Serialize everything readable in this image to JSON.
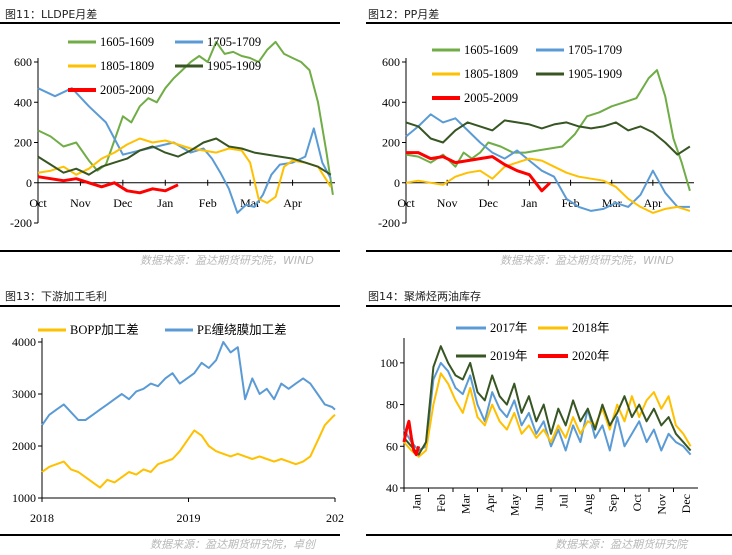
{
  "panels": {
    "p11": {
      "title": "图11：LLDPE月差",
      "source": "数据来源：盈达期货研究院，WIND"
    },
    "p12": {
      "title": "图12：PP月差",
      "source": "数据来源：盈达期货研究院，WIND"
    },
    "p13": {
      "title": "图13：下游加工毛利",
      "source": "数据来源：盈达期货研究院，卓创"
    },
    "p14": {
      "title": "图14：聚烯烃两油库存",
      "source": "数据来源：盈达期货研究院"
    }
  },
  "chart_data": [
    {
      "id": "p11",
      "type": "line",
      "title": "图11：LLDPE月差",
      "x_ticks": [
        "Oct",
        "Nov",
        "Dec",
        "Jan",
        "Feb",
        "Mar",
        "Apr"
      ],
      "y_ticks": [
        600,
        400,
        200,
        0,
        -200
      ],
      "ylim": [
        -200,
        600
      ],
      "xlim": [
        0,
        7
      ],
      "legend_cols": [
        [
          "1605-1609",
          "1805-1809",
          "2005-2009"
        ],
        [
          "1705-1709",
          "1905-1909"
        ]
      ],
      "series": [
        {
          "name": "1605-1609",
          "color": "#70ad47",
          "x": [
            0,
            0.3,
            0.6,
            0.9,
            1.2,
            1.4,
            1.6,
            1.8,
            2.0,
            2.2,
            2.4,
            2.6,
            2.8,
            3.0,
            3.2,
            3.4,
            3.6,
            3.8,
            4.0,
            4.2,
            4.4,
            4.6,
            4.8,
            5.0,
            5.2,
            5.4,
            5.6,
            5.8,
            6.0,
            6.2,
            6.4,
            6.6,
            6.8,
            6.95
          ],
          "y": [
            260,
            230,
            180,
            200,
            110,
            60,
            90,
            210,
            330,
            300,
            380,
            420,
            400,
            470,
            520,
            560,
            600,
            630,
            600,
            700,
            640,
            650,
            630,
            620,
            600,
            660,
            700,
            640,
            620,
            600,
            560,
            400,
            150,
            -60
          ]
        },
        {
          "name": "1705-1709",
          "color": "#5b9bd5",
          "x": [
            0,
            0.4,
            0.8,
            1.2,
            1.6,
            2.0,
            2.4,
            2.8,
            3.2,
            3.6,
            3.9,
            4.1,
            4.3,
            4.5,
            4.7,
            4.9,
            5.1,
            5.3,
            5.5,
            5.7,
            6.0,
            6.3,
            6.5,
            6.7,
            6.9
          ],
          "y": [
            470,
            430,
            470,
            380,
            300,
            140,
            160,
            180,
            200,
            150,
            170,
            120,
            50,
            -30,
            -150,
            -110,
            -120,
            -60,
            40,
            90,
            100,
            130,
            270,
            100,
            20
          ]
        },
        {
          "name": "1805-1809",
          "color": "#ffc000",
          "x": [
            0,
            0.3,
            0.6,
            0.9,
            1.2,
            1.5,
            1.8,
            2.1,
            2.4,
            2.7,
            3.0,
            3.3,
            3.6,
            3.9,
            4.2,
            4.5,
            4.8,
            5.0,
            5.2,
            5.4,
            5.6,
            5.8,
            6.0,
            6.3,
            6.6,
            6.9
          ],
          "y": [
            50,
            60,
            80,
            40,
            70,
            120,
            150,
            190,
            220,
            200,
            210,
            190,
            170,
            160,
            150,
            170,
            160,
            100,
            -80,
            -100,
            -70,
            80,
            110,
            100,
            80,
            -20
          ]
        },
        {
          "name": "1905-1909",
          "color": "#375623",
          "x": [
            0,
            0.3,
            0.6,
            0.9,
            1.2,
            1.5,
            1.8,
            2.1,
            2.4,
            2.7,
            3.0,
            3.3,
            3.6,
            3.9,
            4.2,
            4.5,
            4.8,
            5.1,
            5.4,
            5.7,
            6.0,
            6.3,
            6.6,
            6.9
          ],
          "y": [
            130,
            90,
            50,
            70,
            40,
            80,
            100,
            120,
            160,
            180,
            150,
            130,
            160,
            200,
            220,
            180,
            170,
            150,
            140,
            130,
            120,
            100,
            80,
            40
          ]
        },
        {
          "name": "2005-2009",
          "color": "#ff0000",
          "x": [
            0,
            0.3,
            0.6,
            0.9,
            1.2,
            1.5,
            1.8,
            2.1,
            2.4,
            2.7,
            3.0,
            3.3
          ],
          "y": [
            30,
            20,
            10,
            20,
            0,
            -20,
            0,
            -40,
            -50,
            -30,
            -40,
            -10
          ]
        }
      ]
    },
    {
      "id": "p12",
      "type": "line",
      "title": "图12：PP月差",
      "x_ticks": [
        "Oct",
        "Nov",
        "Dec",
        "Jan",
        "Feb",
        "Mar",
        "Apr"
      ],
      "y_ticks": [
        600,
        400,
        200,
        0,
        -200
      ],
      "ylim": [
        -200,
        600
      ],
      "xlim": [
        0,
        7
      ],
      "legend_cols": [
        [
          "1605-1609",
          "1805-1809",
          "2005-2009"
        ],
        [
          "1705-1709",
          "1905-1909"
        ]
      ],
      "series": [
        {
          "name": "1605-1609",
          "color": "#70ad47",
          "x": [
            0,
            0.3,
            0.6,
            0.9,
            1.2,
            1.4,
            1.6,
            1.8,
            2.0,
            2.3,
            2.6,
            2.9,
            3.2,
            3.5,
            3.8,
            4.1,
            4.4,
            4.7,
            5.0,
            5.3,
            5.6,
            5.9,
            6.1,
            6.3,
            6.5,
            6.7,
            6.9
          ],
          "y": [
            140,
            130,
            100,
            140,
            80,
            150,
            120,
            150,
            200,
            180,
            150,
            150,
            160,
            170,
            180,
            240,
            330,
            350,
            380,
            400,
            420,
            520,
            560,
            430,
            220,
            100,
            -40
          ]
        },
        {
          "name": "1705-1709",
          "color": "#5b9bd5",
          "x": [
            0,
            0.3,
            0.6,
            0.9,
            1.2,
            1.5,
            1.8,
            2.1,
            2.4,
            2.7,
            3.0,
            3.3,
            3.6,
            3.9,
            4.2,
            4.5,
            4.8,
            5.1,
            5.4,
            5.7,
            6.0,
            6.3,
            6.6,
            6.9
          ],
          "y": [
            230,
            280,
            340,
            300,
            320,
            260,
            200,
            150,
            120,
            160,
            110,
            60,
            30,
            -80,
            -120,
            -140,
            -130,
            -100,
            -120,
            -60,
            60,
            -50,
            -120,
            -120
          ]
        },
        {
          "name": "1805-1809",
          "color": "#ffc000",
          "x": [
            0,
            0.3,
            0.6,
            0.9,
            1.2,
            1.5,
            1.8,
            2.1,
            2.4,
            2.7,
            3.0,
            3.3,
            3.6,
            3.9,
            4.2,
            4.5,
            4.8,
            5.1,
            5.4,
            5.7,
            6.0,
            6.3,
            6.6,
            6.9
          ],
          "y": [
            0,
            10,
            0,
            -10,
            30,
            50,
            60,
            20,
            80,
            100,
            120,
            110,
            80,
            50,
            30,
            20,
            10,
            -20,
            -80,
            -120,
            -150,
            -130,
            -120,
            -140
          ]
        },
        {
          "name": "1905-1909",
          "color": "#375623",
          "x": [
            0,
            0.3,
            0.6,
            0.9,
            1.2,
            1.5,
            1.8,
            2.1,
            2.4,
            2.7,
            3.0,
            3.3,
            3.6,
            3.9,
            4.2,
            4.5,
            4.8,
            5.1,
            5.4,
            5.7,
            6.0,
            6.3,
            6.6,
            6.9
          ],
          "y": [
            300,
            280,
            220,
            200,
            260,
            300,
            280,
            260,
            310,
            300,
            290,
            270,
            290,
            300,
            280,
            270,
            280,
            300,
            260,
            280,
            250,
            200,
            140,
            180
          ]
        },
        {
          "name": "2005-2009",
          "color": "#ff0000",
          "x": [
            0,
            0.3,
            0.6,
            0.9,
            1.2,
            1.5,
            1.8,
            2.1,
            2.4,
            2.7,
            3.0,
            3.3,
            3.5
          ],
          "y": [
            150,
            150,
            120,
            130,
            100,
            110,
            120,
            130,
            90,
            60,
            40,
            -40,
            0
          ]
        }
      ]
    },
    {
      "id": "p13",
      "type": "line",
      "title": "图13：下游加工毛利",
      "x_ticks": [
        "2018",
        "2019",
        "202"
      ],
      "y_ticks": [
        4000,
        3000,
        2000,
        1000
      ],
      "ylim": [
        1000,
        4000
      ],
      "xlim": [
        0,
        2.02
      ],
      "legend": [
        "BOPP加工差",
        "PE缠绕膜加工差"
      ],
      "series": [
        {
          "name": "BOPP加工差",
          "color": "#ffc000",
          "x": [
            0,
            0.05,
            0.1,
            0.15,
            0.2,
            0.25,
            0.3,
            0.35,
            0.4,
            0.45,
            0.5,
            0.55,
            0.6,
            0.65,
            0.7,
            0.75,
            0.8,
            0.85,
            0.9,
            0.95,
            1.0,
            1.05,
            1.1,
            1.15,
            1.2,
            1.25,
            1.3,
            1.35,
            1.4,
            1.45,
            1.5,
            1.55,
            1.6,
            1.65,
            1.7,
            1.75,
            1.8,
            1.85,
            1.9,
            1.95,
            2.0,
            2.02
          ],
          "y": [
            1500,
            1600,
            1650,
            1700,
            1550,
            1500,
            1400,
            1300,
            1200,
            1350,
            1300,
            1400,
            1500,
            1450,
            1550,
            1500,
            1650,
            1700,
            1750,
            1900,
            2100,
            2300,
            2200,
            2000,
            1900,
            1850,
            1800,
            1850,
            1800,
            1750,
            1800,
            1750,
            1700,
            1750,
            1700,
            1650,
            1700,
            1800,
            2100,
            2400,
            2550,
            2600
          ]
        },
        {
          "name": "PE缠绕膜加工差",
          "color": "#5b9bd5",
          "x": [
            0,
            0.05,
            0.1,
            0.15,
            0.2,
            0.25,
            0.3,
            0.35,
            0.4,
            0.45,
            0.5,
            0.55,
            0.6,
            0.65,
            0.7,
            0.75,
            0.8,
            0.85,
            0.9,
            0.95,
            1.0,
            1.05,
            1.1,
            1.15,
            1.2,
            1.25,
            1.3,
            1.35,
            1.4,
            1.45,
            1.5,
            1.55,
            1.6,
            1.65,
            1.7,
            1.75,
            1.8,
            1.85,
            1.9,
            1.95,
            2.0,
            2.02
          ],
          "y": [
            2400,
            2600,
            2700,
            2800,
            2650,
            2500,
            2500,
            2600,
            2700,
            2800,
            2900,
            3000,
            2900,
            3050,
            3100,
            3200,
            3150,
            3300,
            3400,
            3200,
            3300,
            3400,
            3600,
            3500,
            3650,
            4000,
            3800,
            3900,
            2900,
            3300,
            3000,
            3100,
            2900,
            3200,
            3100,
            3200,
            3300,
            3200,
            3000,
            2800,
            2750,
            2700
          ]
        }
      ]
    },
    {
      "id": "p14",
      "type": "line",
      "title": "图14：聚烯烃两油库存",
      "x_ticks": [
        "Jan",
        "Feb",
        "Mar",
        "Apr",
        "May",
        "Jun",
        "Jul",
        "Aug",
        "Sep",
        "Oct",
        "Nov",
        "Dec"
      ],
      "y_ticks": [
        100,
        80,
        60,
        40
      ],
      "ylim": [
        40,
        110
      ],
      "xlim": [
        0,
        12
      ],
      "legend_cols": [
        [
          "2017年",
          "2019年"
        ],
        [
          "2018年",
          "2020年"
        ]
      ],
      "series": [
        {
          "name": "2017年",
          "color": "#5b9bd5",
          "x": [
            0,
            0.3,
            0.6,
            0.9,
            1.2,
            1.5,
            1.8,
            2.1,
            2.4,
            2.7,
            3.0,
            3.3,
            3.6,
            3.9,
            4.2,
            4.5,
            4.8,
            5.1,
            5.4,
            5.7,
            6.0,
            6.3,
            6.6,
            6.9,
            7.2,
            7.5,
            7.8,
            8.1,
            8.4,
            8.7,
            9.0,
            9.3,
            9.6,
            9.9,
            10.2,
            10.5,
            10.8,
            11.1,
            11.4,
            11.7
          ],
          "y": [
            68,
            62,
            58,
            60,
            92,
            100,
            96,
            88,
            85,
            94,
            80,
            72,
            86,
            78,
            74,
            82,
            70,
            76,
            66,
            72,
            60,
            68,
            58,
            70,
            62,
            78,
            64,
            70,
            58,
            74,
            60,
            66,
            72,
            62,
            68,
            58,
            66,
            62,
            60,
            56
          ]
        },
        {
          "name": "2018年",
          "color": "#ffc000",
          "x": [
            0,
            0.3,
            0.6,
            0.9,
            1.2,
            1.5,
            1.8,
            2.1,
            2.4,
            2.7,
            3.0,
            3.3,
            3.6,
            3.9,
            4.2,
            4.5,
            4.8,
            5.1,
            5.4,
            5.7,
            6.0,
            6.3,
            6.6,
            6.9,
            7.2,
            7.5,
            7.8,
            8.1,
            8.4,
            8.7,
            9.0,
            9.3,
            9.6,
            9.9,
            10.2,
            10.5,
            10.8,
            11.1,
            11.4,
            11.7
          ],
          "y": [
            62,
            58,
            55,
            58,
            80,
            95,
            90,
            82,
            76,
            88,
            74,
            70,
            80,
            72,
            68,
            76,
            66,
            70,
            64,
            68,
            62,
            70,
            64,
            74,
            66,
            72,
            70,
            78,
            68,
            80,
            72,
            84,
            74,
            82,
            86,
            78,
            84,
            70,
            66,
            60
          ]
        },
        {
          "name": "2019年",
          "color": "#375623",
          "x": [
            0,
            0.3,
            0.6,
            0.9,
            1.2,
            1.5,
            1.8,
            2.1,
            2.4,
            2.7,
            3.0,
            3.3,
            3.6,
            3.9,
            4.2,
            4.5,
            4.8,
            5.1,
            5.4,
            5.7,
            6.0,
            6.3,
            6.6,
            6.9,
            7.2,
            7.5,
            7.8,
            8.1,
            8.4,
            8.7,
            9.0,
            9.3,
            9.6,
            9.9,
            10.2,
            10.5,
            10.8,
            11.1,
            11.4,
            11.7
          ],
          "y": [
            64,
            60,
            56,
            62,
            98,
            108,
            100,
            94,
            92,
            100,
            86,
            82,
            94,
            84,
            80,
            90,
            76,
            84,
            72,
            80,
            66,
            78,
            70,
            82,
            72,
            78,
            68,
            80,
            70,
            76,
            84,
            74,
            80,
            72,
            78,
            70,
            74,
            66,
            62,
            58
          ]
        },
        {
          "name": "2020年",
          "color": "#ff0000",
          "x": [
            0,
            0.1,
            0.2,
            0.3,
            0.4,
            0.5,
            0.6
          ],
          "y": [
            62,
            68,
            72,
            64,
            58,
            56,
            60
          ]
        }
      ]
    }
  ]
}
